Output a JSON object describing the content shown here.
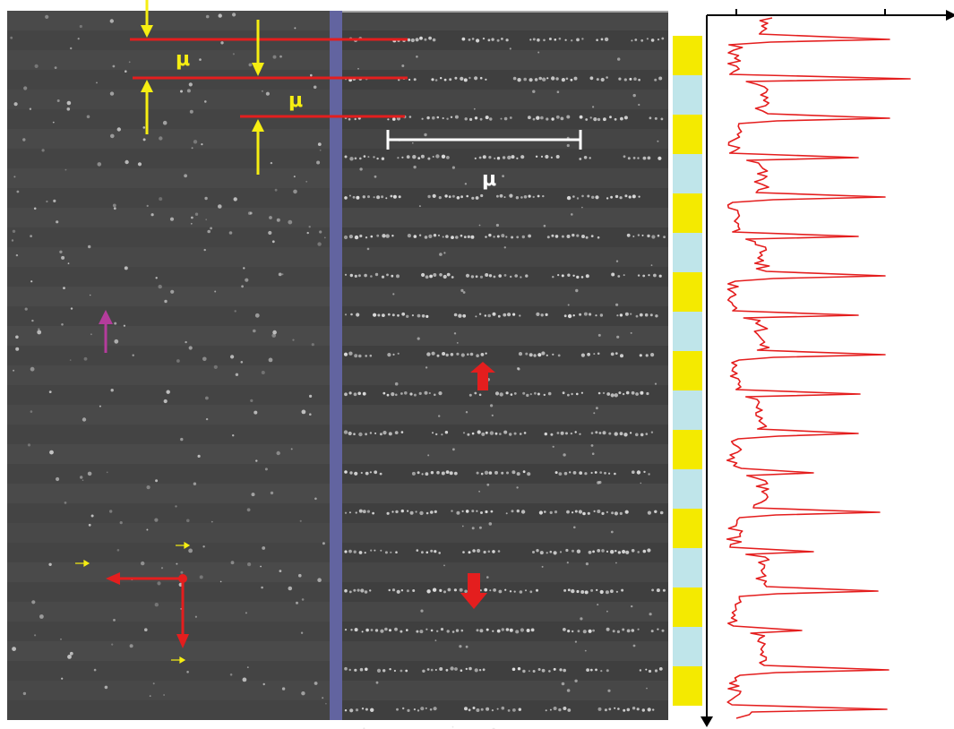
{
  "labels": {
    "spacing_top": "μ",
    "spacing_second": "μ",
    "scale_bar": "μ"
  },
  "colors": {
    "micrograph": "#454545",
    "divider": "#6264a0",
    "guide_line": "#e41e1e",
    "yellow_arrow": "#f6ee12",
    "magenta_arrow": "#b43c9c",
    "red_arrow": "#e41e1e",
    "scale_bar": "#ffffff",
    "band_yellow": "#f4ea00",
    "band_cyan": "#bfe5ea",
    "profile": "#e41e1e",
    "axis": "#000000"
  },
  "bands": [
    "yellow",
    "cyan",
    "yellow",
    "cyan",
    "yellow",
    "cyan",
    "yellow",
    "cyan",
    "yellow",
    "cyan",
    "yellow",
    "cyan",
    "yellow",
    "cyan",
    "yellow",
    "cyan",
    "yellow"
  ]
}
